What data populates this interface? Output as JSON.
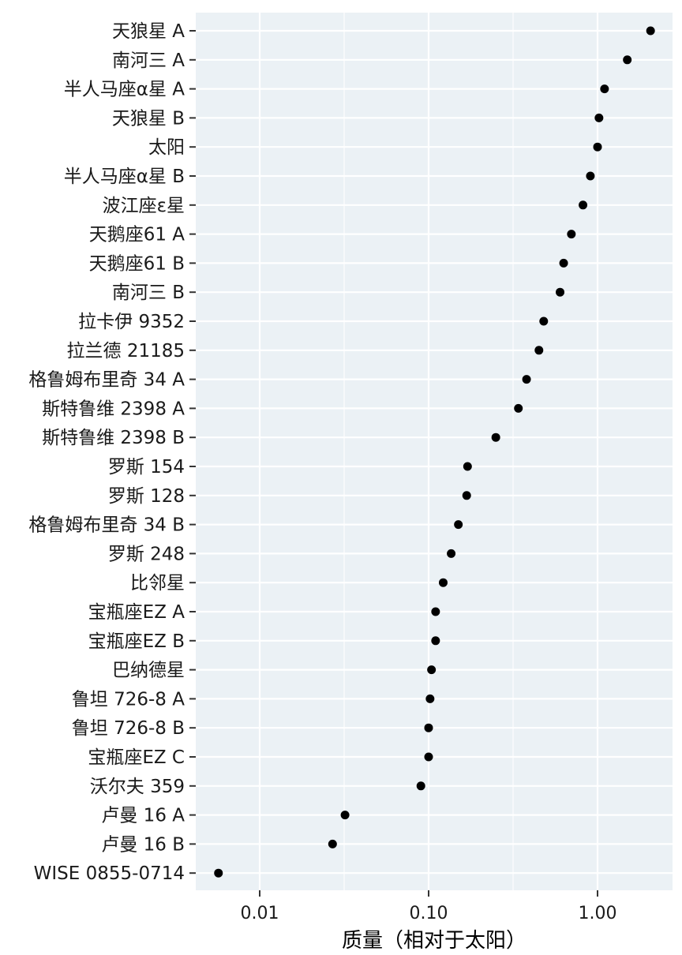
{
  "chart_data": {
    "type": "scatter",
    "xlabel": "质量（相对于太阳）",
    "ylabel": "",
    "x_scale": "log10",
    "xlim": [
      0.004,
      2.5
    ],
    "x_ticks": [
      {
        "value": 0.01,
        "label": "0.01"
      },
      {
        "value": 0.1,
        "label": "0.10"
      },
      {
        "value": 1.0,
        "label": "1.00"
      }
    ],
    "grid": true,
    "points": [
      {
        "label": "天狼星 A",
        "mass": 2.06
      },
      {
        "label": "南河三 A",
        "mass": 1.5
      },
      {
        "label": "半人马座α星 A",
        "mass": 1.1
      },
      {
        "label": "天狼星 B",
        "mass": 1.02
      },
      {
        "label": "太阳",
        "mass": 1.0
      },
      {
        "label": "半人马座α星 B",
        "mass": 0.907
      },
      {
        "label": "波江座ε星",
        "mass": 0.82
      },
      {
        "label": "天鹅座61 A",
        "mass": 0.7
      },
      {
        "label": "天鹅座61 B",
        "mass": 0.63
      },
      {
        "label": "南河三 B",
        "mass": 0.6
      },
      {
        "label": "拉卡伊 9352",
        "mass": 0.48
      },
      {
        "label": "拉兰德 21185",
        "mass": 0.45
      },
      {
        "label": "格鲁姆布里奇 34 A",
        "mass": 0.38
      },
      {
        "label": "斯特鲁维 2398 A",
        "mass": 0.34
      },
      {
        "label": "斯特鲁维 2398 B",
        "mass": 0.25
      },
      {
        "label": "罗斯 154",
        "mass": 0.17
      },
      {
        "label": "罗斯 128",
        "mass": 0.168
      },
      {
        "label": "格鲁姆布里奇 34 B",
        "mass": 0.15
      },
      {
        "label": "罗斯 248",
        "mass": 0.136
      },
      {
        "label": "比邻星",
        "mass": 0.122
      },
      {
        "label": "宝瓶座EZ A",
        "mass": 0.11
      },
      {
        "label": "宝瓶座EZ B",
        "mass": 0.11
      },
      {
        "label": "巴纳德星",
        "mass": 0.104
      },
      {
        "label": "鲁坦 726-8 A",
        "mass": 0.102
      },
      {
        "label": "鲁坦 726-8 B",
        "mass": 0.1
      },
      {
        "label": "宝瓶座EZ C",
        "mass": 0.1
      },
      {
        "label": "沃尔夫 359",
        "mass": 0.09
      },
      {
        "label": "卢曼 16 A",
        "mass": 0.032
      },
      {
        "label": "卢曼 16 B",
        "mass": 0.027
      },
      {
        "label": "WISE 0855-0714",
        "mass": 0.0057
      }
    ]
  }
}
